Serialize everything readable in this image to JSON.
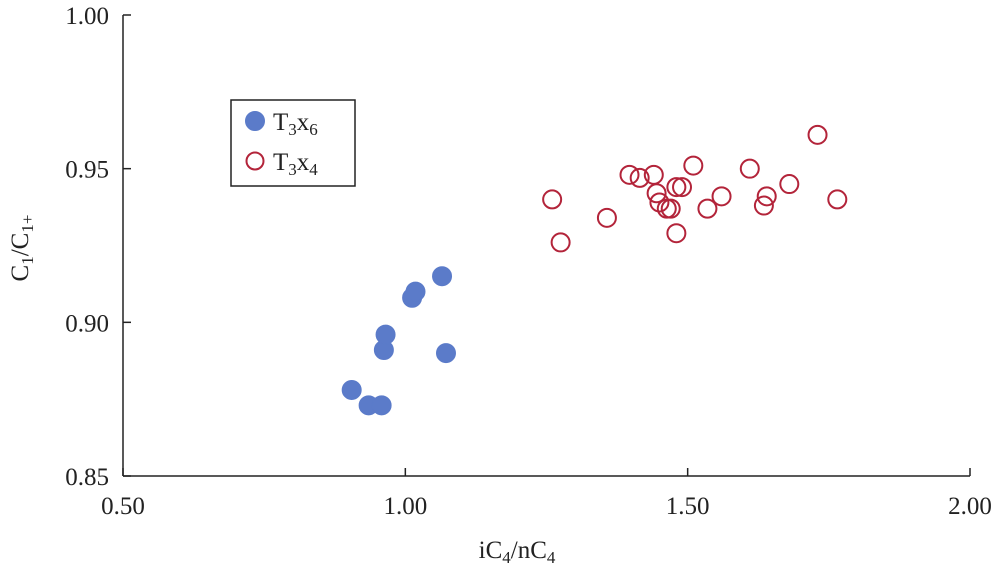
{
  "chart_data": {
    "type": "scatter",
    "title": "",
    "xlabel": {
      "base": "iC",
      "sub1": "4",
      "mid": "/nC",
      "sub2": "4"
    },
    "ylabel": {
      "base": "C",
      "sub1": "1",
      "mid": "/C",
      "sub2": "1+"
    },
    "xlim": [
      0.5,
      2.0
    ],
    "ylim": [
      0.85,
      1.0
    ],
    "xticks": [
      "0.50",
      "1.00",
      "1.50",
      "2.00"
    ],
    "yticks": [
      "0.85",
      "0.90",
      "0.95",
      "1.00"
    ],
    "grid": false,
    "legend_position": "top-left",
    "series": [
      {
        "name": {
          "base": "T",
          "sub1": "3",
          "mid": "x",
          "sub2": "6"
        },
        "marker": "filled-circle",
        "color": "#5b7bc9",
        "points": [
          [
            0.905,
            0.878
          ],
          [
            0.935,
            0.873
          ],
          [
            0.958,
            0.873
          ],
          [
            0.962,
            0.891
          ],
          [
            0.965,
            0.896
          ],
          [
            1.012,
            0.908
          ],
          [
            1.018,
            0.91
          ],
          [
            1.065,
            0.915
          ],
          [
            1.072,
            0.89
          ]
        ]
      },
      {
        "name": {
          "base": "T",
          "sub1": "3",
          "mid": "x",
          "sub2": "4"
        },
        "marker": "open-circle",
        "color": "#b3243a",
        "points": [
          [
            1.26,
            0.94
          ],
          [
            1.275,
            0.926
          ],
          [
            1.357,
            0.934
          ],
          [
            1.397,
            0.948
          ],
          [
            1.415,
            0.947
          ],
          [
            1.44,
            0.948
          ],
          [
            1.445,
            0.942
          ],
          [
            1.45,
            0.939
          ],
          [
            1.463,
            0.937
          ],
          [
            1.47,
            0.937
          ],
          [
            1.48,
            0.929
          ],
          [
            1.48,
            0.944
          ],
          [
            1.49,
            0.944
          ],
          [
            1.51,
            0.951
          ],
          [
            1.535,
            0.937
          ],
          [
            1.56,
            0.941
          ],
          [
            1.61,
            0.95
          ],
          [
            1.635,
            0.938
          ],
          [
            1.64,
            0.941
          ],
          [
            1.68,
            0.945
          ],
          [
            1.73,
            0.961
          ],
          [
            1.765,
            0.94
          ]
        ]
      }
    ]
  }
}
